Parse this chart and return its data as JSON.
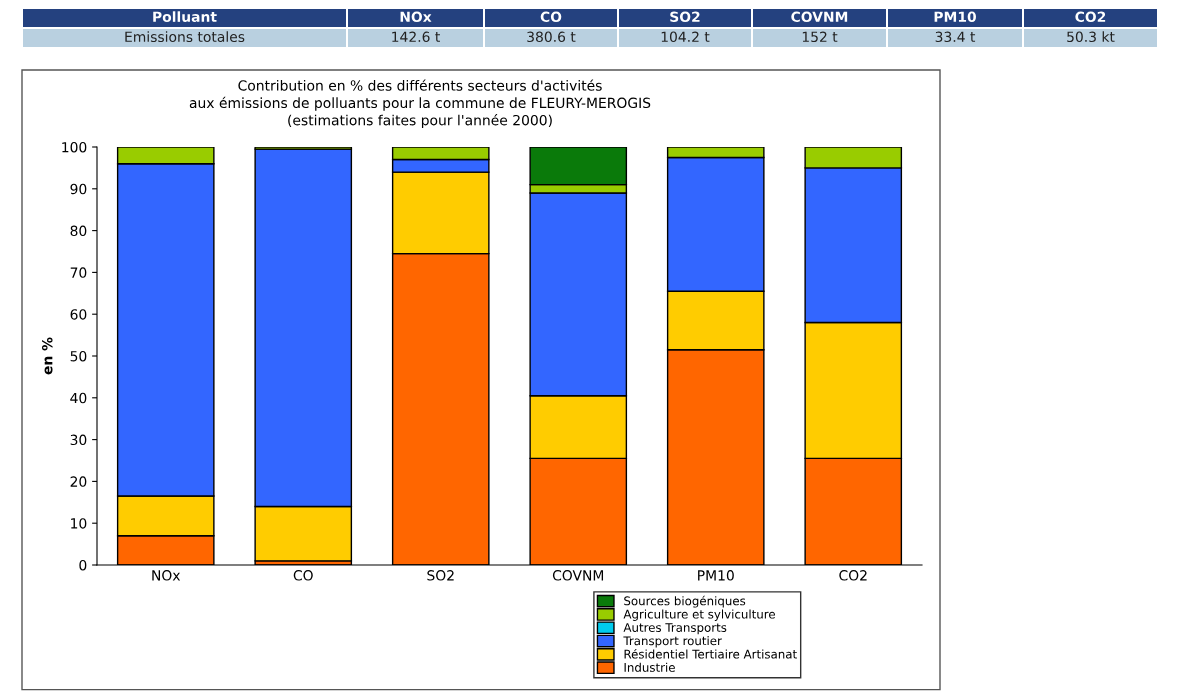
{
  "chart_data": {
    "type": "bar",
    "stacked": true,
    "title": "Contribution en % des différents secteurs d'activités\naux émissions de polluants pour la commune de FLEURY-MEROGIS\n(estimations faites pour l'année 2000)",
    "ylabel": "en %",
    "categories": [
      "NOx",
      "CO",
      "SO2",
      "COVNM",
      "PM10",
      "CO2"
    ],
    "series": [
      {
        "name": "Industrie",
        "color": "#ff6600",
        "values": [
          7,
          1,
          74.5,
          25.5,
          51.5,
          25.5
        ]
      },
      {
        "name": "Résidentiel Tertiaire Artisanat",
        "color": "#ffcc00",
        "values": [
          9.5,
          13,
          19.5,
          15,
          14,
          32.5
        ]
      },
      {
        "name": "Transport routier",
        "color": "#3366ff",
        "values": [
          79.5,
          85.5,
          3,
          48.5,
          32,
          37
        ]
      },
      {
        "name": "Autres Transports",
        "color": "#00ccee",
        "values": [
          0,
          0,
          0,
          0,
          0,
          0
        ]
      },
      {
        "name": "Agriculture et sylviculture",
        "color": "#99cc00",
        "values": [
          4,
          0.5,
          3,
          2,
          2.5,
          5
        ]
      },
      {
        "name": "Sources biogéniques",
        "color": "#0a7a0a",
        "values": [
          0,
          0,
          0,
          9,
          0,
          0
        ]
      }
    ],
    "ylim": [
      0,
      100
    ],
    "yticks": [
      0,
      10,
      20,
      30,
      40,
      50,
      60,
      70,
      80,
      90,
      100
    ],
    "grid": false,
    "legend": "bottom",
    "annotations": [
      "Polluant",
      "NOx",
      "CO",
      "SO2",
      "COVNM",
      "PM10",
      "CO2",
      "Emissions totales",
      "142.6 t",
      "380.6 t",
      "104.2 t",
      "152 t",
      "33.4 t",
      "50.3 kt"
    ]
  }
}
